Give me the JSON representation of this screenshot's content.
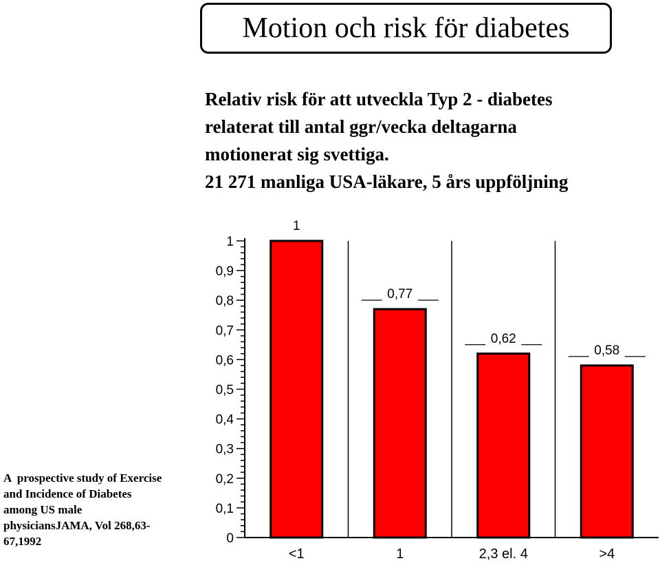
{
  "title": "Motion och risk för diabetes",
  "subtitle_lines": [
    "Relativ risk för att utveckla Typ 2 - diabetes",
    "relaterat till antal ggr/vecka deltagarna",
    "motionerat sig svettiga.",
    "21 271 manliga USA-läkare, 5 års uppföljning"
  ],
  "citation_lines": [
    "A  prospective study of Exercise",
    "and Incidence of Diabetes",
    "among US male",
    "physiciansJAMA, Vol 268,63-",
    "67,1992"
  ],
  "colors": {
    "bar": "#ff0000",
    "axis": "#000000"
  },
  "chart_data": {
    "type": "bar",
    "categories": [
      "<1",
      "1",
      "2,3 el. 4",
      ">4"
    ],
    "values": [
      1,
      0.77,
      0.62,
      0.58
    ],
    "data_labels": [
      "1",
      "0,77",
      "0,62",
      "0,58"
    ],
    "ylim": [
      0,
      1
    ],
    "yticks": [
      0,
      0.1,
      0.2,
      0.3,
      0.4,
      0.5,
      0.6,
      0.7,
      0.8,
      0.9,
      1
    ],
    "ytick_labels": [
      "0",
      "0,1",
      "0,2",
      "0,3",
      "0,4",
      "0,5",
      "0,6",
      "0,7",
      "0,8",
      "0,9",
      "1"
    ],
    "xlabel": "",
    "ylabel": "",
    "grid": "vertical lines between categories"
  }
}
